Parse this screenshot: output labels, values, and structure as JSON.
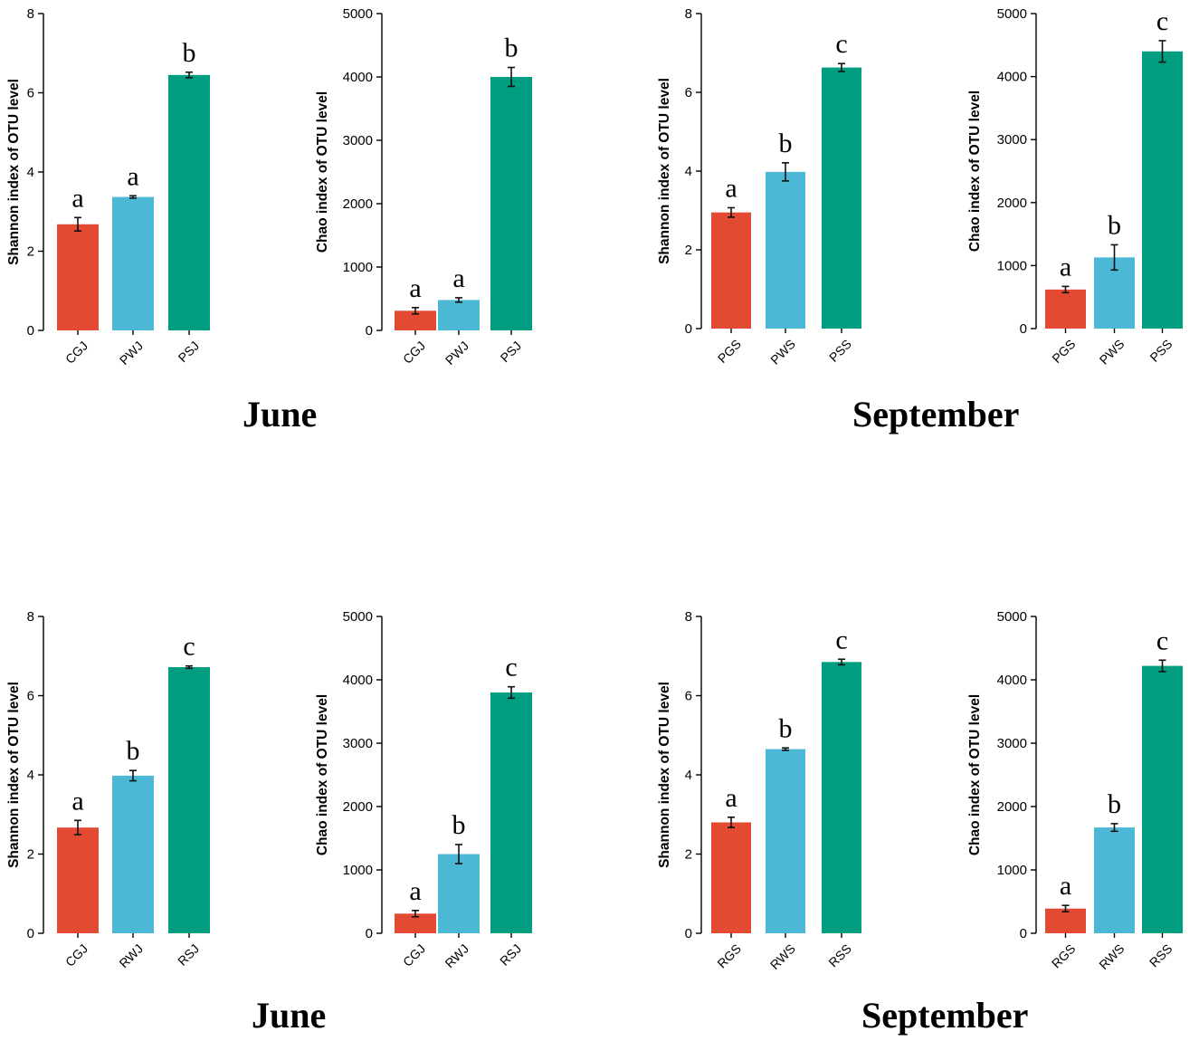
{
  "colors": {
    "red": "#e34a33",
    "blue": "#4db8d6",
    "green": "#009e80"
  },
  "month_labels": {
    "top_left": "June",
    "top_right": "September",
    "bottom_left": "June",
    "bottom_right": "September"
  },
  "chart_data": [
    {
      "type": "bar",
      "ylabel": "Shannon index of OTU level",
      "ylim": [
        0,
        8
      ],
      "yticks": [
        "0",
        "2",
        "4",
        "6",
        "8"
      ],
      "categories": [
        "CGJ",
        "PWJ",
        "PSJ"
      ],
      "values": [
        2.68,
        3.37,
        6.45
      ],
      "errors": [
        0.17,
        0.03,
        0.07
      ],
      "letters": [
        "a",
        "a",
        "b"
      ]
    },
    {
      "type": "bar",
      "ylabel": "Chao index of OTU level",
      "ylim": [
        0,
        5000
      ],
      "yticks": [
        "0",
        "1000",
        "2000",
        "3000",
        "4000",
        "5000"
      ],
      "categories": [
        "CGJ",
        "PWJ",
        "PSJ"
      ],
      "values": [
        310,
        480,
        4000
      ],
      "errors": [
        50,
        35,
        150
      ],
      "letters": [
        "a",
        "a",
        "b"
      ]
    },
    {
      "type": "bar",
      "ylabel": "Shannon index of OTU level",
      "ylim": [
        0,
        8
      ],
      "yticks": [
        "0",
        "2",
        "4",
        "6",
        "8"
      ],
      "categories": [
        "PGS",
        "PWS",
        "PSS"
      ],
      "values": [
        2.95,
        3.98,
        6.63
      ],
      "errors": [
        0.12,
        0.23,
        0.1
      ],
      "letters": [
        "a",
        "b",
        "c"
      ]
    },
    {
      "type": "bar",
      "ylabel": "Chao index of OTU level",
      "ylim": [
        0,
        5000
      ],
      "yticks": [
        "0",
        "1000",
        "2000",
        "3000",
        "4000",
        "5000"
      ],
      "categories": [
        "PGS",
        "PWS",
        "PSS"
      ],
      "values": [
        620,
        1130,
        4400
      ],
      "errors": [
        50,
        200,
        170
      ],
      "letters": [
        "a",
        "b",
        "c"
      ]
    },
    {
      "type": "bar",
      "ylabel": "Shannon index of OTU level",
      "ylim": [
        0,
        8
      ],
      "yticks": [
        "0",
        "2",
        "4",
        "6",
        "8"
      ],
      "categories": [
        "CGJ",
        "RWJ",
        "RSJ"
      ],
      "values": [
        2.67,
        3.98,
        6.72
      ],
      "errors": [
        0.18,
        0.13,
        0.03
      ],
      "letters": [
        "a",
        "b",
        "c"
      ]
    },
    {
      "type": "bar",
      "ylabel": "Chao index of OTU level",
      "ylim": [
        0,
        5000
      ],
      "yticks": [
        "0",
        "1000",
        "2000",
        "3000",
        "4000",
        "5000"
      ],
      "categories": [
        "CGJ",
        "RWJ",
        "RSJ"
      ],
      "values": [
        310,
        1250,
        3800
      ],
      "errors": [
        50,
        150,
        90
      ],
      "letters": [
        "a",
        "b",
        "c"
      ]
    },
    {
      "type": "bar",
      "ylabel": "Shannon index of OTU level",
      "ylim": [
        0,
        8
      ],
      "yticks": [
        "0",
        "2",
        "4",
        "6",
        "8"
      ],
      "categories": [
        "RGS",
        "RWS",
        "RSS"
      ],
      "values": [
        2.8,
        4.65,
        6.85
      ],
      "errors": [
        0.13,
        0.03,
        0.07
      ],
      "letters": [
        "a",
        "b",
        "c"
      ]
    },
    {
      "type": "bar",
      "ylabel": "Chao index of OTU level",
      "ylim": [
        0,
        5000
      ],
      "yticks": [
        "0",
        "1000",
        "2000",
        "3000",
        "4000",
        "5000"
      ],
      "categories": [
        "RGS",
        "RWS",
        "RSS"
      ],
      "values": [
        390,
        1670,
        4220
      ],
      "errors": [
        50,
        60,
        90
      ],
      "letters": [
        "a",
        "b",
        "c"
      ]
    }
  ]
}
